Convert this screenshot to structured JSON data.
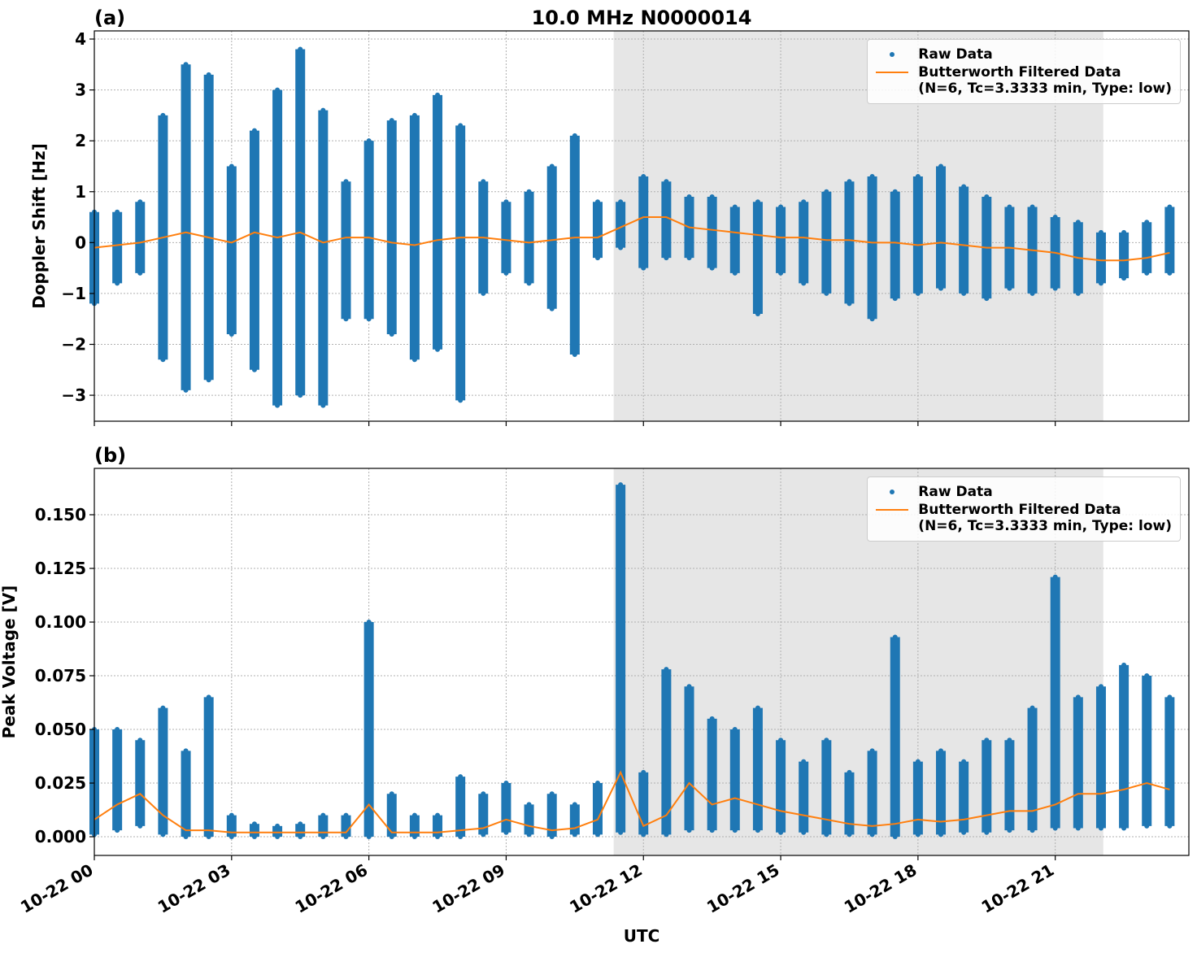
{
  "chart_data": [
    {
      "type": "line",
      "title": "10.0 MHz N0000014",
      "panel_label": "(a)",
      "ylabel": "Doppler Shift [Hz]",
      "xlim": [
        0,
        23.92
      ],
      "ylim": [
        -3.51,
        4.16
      ],
      "xticks": [
        0,
        3,
        6,
        9,
        12,
        15,
        18,
        21
      ],
      "yticks": [
        {
          "value": -3,
          "label": "−3"
        },
        {
          "value": -2,
          "label": "−2"
        },
        {
          "value": -1,
          "label": "−1"
        },
        0,
        1,
        2,
        3,
        4
      ],
      "grid": true,
      "legend": "upper-right",
      "shade": [
        11.35,
        22.05
      ],
      "x": [
        0,
        0.5,
        1,
        1.5,
        2,
        2.5,
        3,
        3.5,
        4,
        4.5,
        5,
        5.5,
        6,
        6.5,
        7,
        7.5,
        8,
        8.5,
        9,
        9.5,
        10,
        10.5,
        11,
        11.5,
        12,
        12.5,
        13,
        13.5,
        14,
        14.5,
        15,
        15.5,
        16,
        16.5,
        17,
        17.5,
        18,
        18.5,
        19,
        19.5,
        20,
        20.5,
        21,
        21.5,
        22,
        22.5,
        23,
        23.5
      ],
      "series": [
        {
          "name": "Raw Data",
          "style": "points",
          "color": "#1f77b4",
          "high": [
            0.6,
            0.6,
            0.8,
            2.5,
            3.5,
            3.3,
            1.5,
            2.2,
            3.0,
            3.8,
            2.6,
            1.2,
            2.0,
            2.4,
            2.5,
            2.9,
            2.3,
            1.2,
            0.8,
            1.0,
            1.5,
            2.1,
            0.8,
            0.8,
            1.3,
            1.2,
            0.9,
            0.9,
            0.7,
            0.8,
            0.7,
            0.8,
            1.0,
            1.2,
            1.3,
            1.0,
            1.3,
            1.5,
            1.1,
            0.9,
            0.7,
            0.7,
            0.5,
            0.4,
            0.2,
            0.2,
            0.4,
            0.7
          ],
          "low": [
            -1.2,
            -0.8,
            -0.6,
            -2.3,
            -2.9,
            -2.7,
            -1.8,
            -2.5,
            -3.2,
            -3.0,
            -3.2,
            -1.5,
            -1.5,
            -1.8,
            -2.3,
            -2.1,
            -3.1,
            -1.0,
            -0.6,
            -0.8,
            -1.3,
            -2.2,
            -0.3,
            -0.1,
            -0.5,
            -0.3,
            -0.3,
            -0.5,
            -0.6,
            -1.4,
            -0.6,
            -0.8,
            -1.0,
            -1.2,
            -1.5,
            -1.1,
            -1.0,
            -0.9,
            -1.0,
            -1.1,
            -0.9,
            -1.0,
            -0.9,
            -1.0,
            -0.8,
            -0.7,
            -0.6,
            -0.6
          ]
        },
        {
          "name": "Butterworth Filtered Data\n(N=6, Tc=3.3333 min, Type: low)",
          "style": "line",
          "color": "#ff7f0e",
          "values": [
            -0.1,
            -0.05,
            0.0,
            0.1,
            0.2,
            0.1,
            0.0,
            0.2,
            0.1,
            0.2,
            0.0,
            0.1,
            0.1,
            0.0,
            -0.05,
            0.05,
            0.1,
            0.1,
            0.05,
            0.0,
            0.05,
            0.1,
            0.1,
            0.3,
            0.5,
            0.5,
            0.3,
            0.25,
            0.2,
            0.15,
            0.1,
            0.1,
            0.05,
            0.05,
            0.0,
            0.0,
            -0.05,
            0.0,
            -0.05,
            -0.1,
            -0.1,
            -0.15,
            -0.2,
            -0.3,
            -0.35,
            -0.35,
            -0.3,
            -0.2
          ]
        }
      ]
    },
    {
      "type": "line",
      "panel_label": "(b)",
      "ylabel": "Peak Voltage [V]",
      "xlabel": "UTC",
      "xlim": [
        0,
        23.92
      ],
      "ylim": [
        -0.0087,
        0.1716
      ],
      "xticks": [
        {
          "value": 0,
          "label": "10-22 00"
        },
        {
          "value": 3,
          "label": "10-22 03"
        },
        {
          "value": 6,
          "label": "10-22 06"
        },
        {
          "value": 9,
          "label": "10-22 09"
        },
        {
          "value": 12,
          "label": "10-22 12"
        },
        {
          "value": 15,
          "label": "10-22 15"
        },
        {
          "value": 18,
          "label": "10-22 18"
        },
        {
          "value": 21,
          "label": "10-22 21"
        }
      ],
      "yticks": [
        {
          "value": 0,
          "label": "0.000"
        },
        {
          "value": 0.025,
          "label": "0.025"
        },
        {
          "value": 0.05,
          "label": "0.050"
        },
        {
          "value": 0.075,
          "label": "0.075"
        },
        {
          "value": 0.1,
          "label": "0.100"
        },
        {
          "value": 0.125,
          "label": "0.125"
        },
        {
          "value": 0.15,
          "label": "0.150"
        }
      ],
      "grid": true,
      "legend": "upper-right",
      "shade": [
        11.35,
        22.05
      ],
      "x": [
        0,
        0.5,
        1,
        1.5,
        2,
        2.5,
        3,
        3.5,
        4,
        4.5,
        5,
        5.5,
        6,
        6.5,
        7,
        7.5,
        8,
        8.5,
        9,
        9.5,
        10,
        10.5,
        11,
        11.5,
        12,
        12.5,
        13,
        13.5,
        14,
        14.5,
        15,
        15.5,
        16,
        16.5,
        17,
        17.5,
        18,
        18.5,
        19,
        19.5,
        20,
        20.5,
        21,
        21.5,
        22,
        22.5,
        23,
        23.5
      ],
      "series": [
        {
          "name": "Raw Data",
          "style": "points",
          "color": "#1f77b4",
          "high": [
            0.05,
            0.05,
            0.045,
            0.06,
            0.04,
            0.065,
            0.01,
            0.006,
            0.005,
            0.006,
            0.01,
            0.01,
            0.1,
            0.02,
            0.01,
            0.01,
            0.028,
            0.02,
            0.025,
            0.015,
            0.02,
            0.015,
            0.025,
            0.164,
            0.03,
            0.078,
            0.07,
            0.055,
            0.05,
            0.06,
            0.045,
            0.035,
            0.045,
            0.03,
            0.04,
            0.093,
            0.035,
            0.04,
            0.035,
            0.045,
            0.045,
            0.06,
            0.121,
            0.065,
            0.07,
            0.08,
            0.075,
            0.065
          ],
          "low": [
            0.001,
            0.003,
            0.005,
            0.001,
            0.0,
            0.0,
            0.0,
            0.0,
            0.0,
            0.0,
            0.0,
            0.0,
            0.0,
            0.0,
            0.0,
            0.0,
            0.0,
            0.001,
            0.002,
            0.001,
            0.0,
            0.001,
            0.001,
            0.002,
            0.001,
            0.001,
            0.003,
            0.003,
            0.003,
            0.003,
            0.002,
            0.002,
            0.001,
            0.001,
            0.001,
            0.0,
            0.001,
            0.001,
            0.002,
            0.002,
            0.003,
            0.003,
            0.004,
            0.004,
            0.004,
            0.004,
            0.005,
            0.005
          ]
        },
        {
          "name": "Butterworth Filtered Data\n(N=6, Tc=3.3333 min, Type: low)",
          "style": "line",
          "color": "#ff7f0e",
          "values": [
            0.008,
            0.015,
            0.02,
            0.01,
            0.003,
            0.003,
            0.002,
            0.002,
            0.002,
            0.002,
            0.002,
            0.002,
            0.015,
            0.002,
            0.002,
            0.002,
            0.003,
            0.004,
            0.008,
            0.005,
            0.003,
            0.004,
            0.008,
            0.03,
            0.005,
            0.01,
            0.025,
            0.015,
            0.018,
            0.015,
            0.012,
            0.01,
            0.008,
            0.006,
            0.005,
            0.006,
            0.008,
            0.007,
            0.008,
            0.01,
            0.012,
            0.012,
            0.015,
            0.02,
            0.02,
            0.022,
            0.025,
            0.022
          ]
        }
      ]
    }
  ]
}
